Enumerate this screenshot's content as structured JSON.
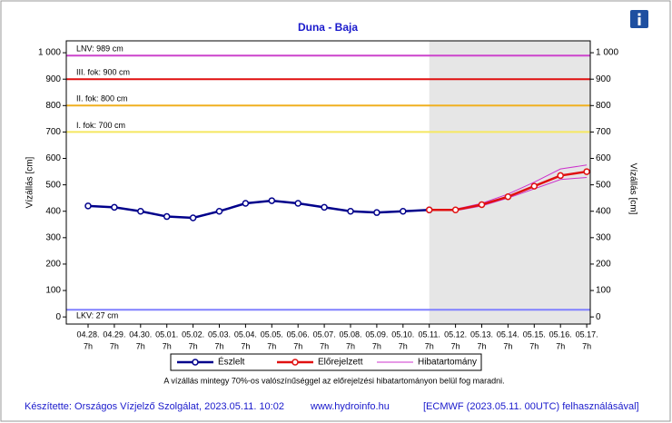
{
  "chart_data": {
    "type": "line",
    "title": "Duna - Baja",
    "y_label": "Vízállás [cm]",
    "y2_label": "Vízállás [cm]",
    "categories": [
      "04.28.",
      "04.29.",
      "04.30.",
      "05.01.",
      "05.02.",
      "05.03.",
      "05.04.",
      "05.05.",
      "05.06.",
      "05.07.",
      "05.08.",
      "05.09.",
      "05.10.",
      "05.11.",
      "05.12.",
      "05.13.",
      "05.14.",
      "05.15.",
      "05.16.",
      "05.17."
    ],
    "hour_label": "7h",
    "ylim": [
      -27,
      1045
    ],
    "yticks": [
      0,
      100,
      200,
      300,
      400,
      500,
      600,
      700,
      800,
      900,
      {
        "value": 1000,
        "label": "1 000"
      }
    ],
    "y2lim": [
      -27,
      1045
    ],
    "y2ticks": [
      0,
      100,
      200,
      300,
      400,
      500,
      600,
      700,
      800,
      900,
      {
        "value": 1000,
        "label": "1 000"
      }
    ],
    "forecast_start": "05.11.",
    "levels": [
      {
        "label": "LNV: 989 cm",
        "value": 989,
        "color": "#cc44cc"
      },
      {
        "label": "III. fok: 900 cm",
        "value": 900,
        "color": "#e01010"
      },
      {
        "label": "II. fok: 800 cm",
        "value": 800,
        "color": "#f0b020"
      },
      {
        "label": "I. fok: 700 cm",
        "value": 700,
        "color": "#f5e860"
      },
      {
        "label": "LKV: 27 cm",
        "value": 27,
        "color": "#8080ff"
      }
    ],
    "series": [
      {
        "name": "Észlelt",
        "color": "#00008b",
        "values": [
          420,
          415,
          400,
          380,
          375,
          400,
          430,
          440,
          430,
          415,
          400,
          395,
          400,
          405,
          null,
          null,
          null,
          null,
          null,
          null
        ]
      },
      {
        "name": "Előrejelzett",
        "color": "#e01010",
        "values": [
          null,
          null,
          null,
          null,
          null,
          null,
          null,
          null,
          null,
          null,
          null,
          null,
          null,
          405,
          405,
          425,
          455,
          495,
          535,
          550
        ]
      }
    ],
    "band": {
      "name": "Hibatartomány",
      "color": "#cc33cc",
      "upper": [
        null,
        null,
        null,
        null,
        null,
        null,
        null,
        null,
        null,
        null,
        null,
        null,
        null,
        null,
        408,
        430,
        465,
        510,
        560,
        575
      ],
      "lower": [
        null,
        null,
        null,
        null,
        null,
        null,
        null,
        null,
        null,
        null,
        null,
        null,
        null,
        null,
        402,
        420,
        450,
        485,
        520,
        528
      ]
    },
    "note": "A vízállás mintegy 70%-os valószínűséggel az előrejelzési hibatartományon belül fog maradni.",
    "footer": [
      "Készítette: Országos Vízjelző Szolgálat, 2023.05.11. 10:02",
      "www.hydroinfo.hu",
      "[ECMWF (2023.05.11. 00UTC) felhasználásával]"
    ]
  }
}
